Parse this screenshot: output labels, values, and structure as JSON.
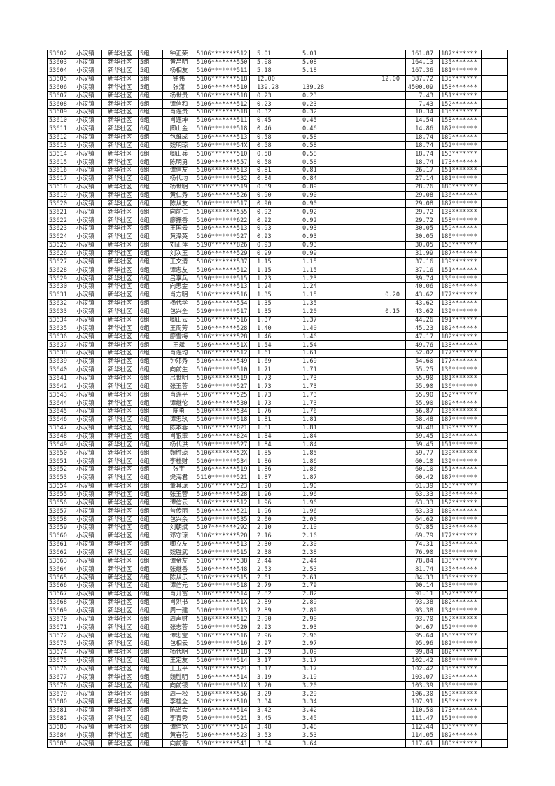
{
  "rows": [
    [
      "53602",
      "小汉镇",
      "新华社区",
      "5组",
      "钟正荣",
      "5106*******512",
      "5.01",
      "5.01",
      "",
      "",
      "161.87",
      "187*******",
      ""
    ],
    [
      "53603",
      "小汉镇",
      "新华社区",
      "5组",
      "黄昌明",
      "5106*******550",
      "5.08",
      "5.08",
      "",
      "",
      "164.13",
      "135*******",
      ""
    ],
    [
      "53604",
      "小汉镇",
      "新华社区",
      "5组",
      "杨相友",
      "5106*******511",
      "5.18",
      "5.18",
      "",
      "",
      "167.36",
      "181*******",
      ""
    ],
    [
      "53605",
      "小汉镇",
      "新华社区",
      "5组",
      "钟伟",
      "5106*******518",
      "12.00",
      "",
      "",
      "12.00",
      "387.72",
      "135*******",
      ""
    ],
    [
      "53606",
      "小汉镇",
      "新华社区",
      "5组",
      "张潇",
      "5106*******510",
      "139.28",
      "139.28",
      "",
      "",
      "4500.09",
      "158*******",
      ""
    ],
    [
      "53607",
      "小汉镇",
      "新华社区",
      "6组",
      "杨世贵",
      "5106*******518",
      "0.23",
      "0.23",
      "",
      "",
      "7.43",
      "151*******",
      ""
    ],
    [
      "53608",
      "小汉镇",
      "新华社区",
      "6组",
      "谭信和",
      "5106*******512",
      "0.23",
      "0.23",
      "",
      "",
      "7.43",
      "152*******",
      ""
    ],
    [
      "53609",
      "小汉镇",
      "新华社区",
      "6组",
      "肖连贵",
      "5106*******518",
      "0.32",
      "0.32",
      "",
      "",
      "10.34",
      "135*******",
      ""
    ],
    [
      "53610",
      "小汉镇",
      "新华社区",
      "6组",
      "肖连坤",
      "5106*******511",
      "0.45",
      "0.45",
      "",
      "",
      "14.54",
      "158*******",
      ""
    ],
    [
      "53611",
      "小汉镇",
      "新华社区",
      "6组",
      "卿山金",
      "5106*******518",
      "0.46",
      "0.46",
      "",
      "",
      "14.86",
      "187*******",
      ""
    ],
    [
      "53612",
      "小汉镇",
      "新华社区",
      "6组",
      "包维成",
      "5106*******513",
      "0.58",
      "0.58",
      "",
      "",
      "18.74",
      "189*******",
      ""
    ],
    [
      "53613",
      "小汉镇",
      "新华社区",
      "6组",
      "魏明琼",
      "5106*******54X",
      "0.58",
      "0.58",
      "",
      "",
      "18.74",
      "152*******",
      ""
    ],
    [
      "53614",
      "小汉镇",
      "新华社区",
      "6组",
      "卿山兵",
      "5106*******510",
      "0.58",
      "0.58",
      "",
      "",
      "18.74",
      "153*******",
      ""
    ],
    [
      "53615",
      "小汉镇",
      "新华社区",
      "6组",
      "陈明勇",
      "5190*******557",
      "0.58",
      "0.58",
      "",
      "",
      "18.74",
      "173*******",
      ""
    ],
    [
      "53616",
      "小汉镇",
      "新华社区",
      "6组",
      "谭信友",
      "5106*******513",
      "0.81",
      "0.81",
      "",
      "",
      "26.17",
      "151*******",
      ""
    ],
    [
      "53617",
      "小汉镇",
      "新华社区",
      "6组",
      "杨代均",
      "5106*******532",
      "0.84",
      "0.84",
      "",
      "",
      "27.14",
      "181*******",
      ""
    ],
    [
      "53618",
      "小汉镇",
      "新华社区",
      "6组",
      "杨世明",
      "5106*******519",
      "0.89",
      "0.89",
      "",
      "",
      "28.76",
      "180*******",
      ""
    ],
    [
      "53619",
      "小汉镇",
      "新华社区",
      "6组",
      "黄仁秀",
      "5106*******526",
      "0.90",
      "0.90",
      "",
      "",
      "29.08",
      "136*******",
      ""
    ],
    [
      "53620",
      "小汉镇",
      "新华社区",
      "6组",
      "陈从友",
      "5106*******517",
      "0.90",
      "0.90",
      "",
      "",
      "29.08",
      "187*******",
      ""
    ],
    [
      "53621",
      "小汉镇",
      "新华社区",
      "6组",
      "向前仁",
      "5106*******555",
      "0.92",
      "0.92",
      "",
      "",
      "29.72",
      "138*******",
      ""
    ],
    [
      "53622",
      "小汉镇",
      "新华社区",
      "6组",
      "廖振香",
      "5106*******622",
      "0.92",
      "0.92",
      "",
      "",
      "29.72",
      "158*******",
      ""
    ],
    [
      "53623",
      "小汉镇",
      "新华社区",
      "6组",
      "王国云",
      "5106*******513",
      "0.93",
      "0.93",
      "",
      "",
      "30.05",
      "159*******",
      ""
    ],
    [
      "53624",
      "小汉镇",
      "新华社区",
      "6组",
      "黄泽英",
      "5106*******527",
      "0.93",
      "0.93",
      "",
      "",
      "30.05",
      "180*******",
      ""
    ],
    [
      "53625",
      "小汉镇",
      "新华社区",
      "6组",
      "刘正萍",
      "5190*******826",
      "0.93",
      "0.93",
      "",
      "",
      "30.05",
      "158*******",
      ""
    ],
    [
      "53626",
      "小汉镇",
      "新华社区",
      "6组",
      "刘次玉",
      "5106*******529",
      "0.99",
      "0.99",
      "",
      "",
      "31.99",
      "187*******",
      ""
    ],
    [
      "53627",
      "小汉镇",
      "新华社区",
      "6组",
      "王文清",
      "5106*******537",
      "1.15",
      "1.15",
      "",
      "",
      "37.16",
      "139*******",
      ""
    ],
    [
      "53628",
      "小汉镇",
      "新华社区",
      "6组",
      "谭忠友",
      "5106*******512",
      "1.15",
      "1.15",
      "",
      "",
      "37.16",
      "151*******",
      ""
    ],
    [
      "53629",
      "小汉镇",
      "新华社区",
      "6组",
      "吕享兵",
      "5190*******515",
      "1.23",
      "1.23",
      "",
      "",
      "39.74",
      "136*******",
      ""
    ],
    [
      "53630",
      "小汉镇",
      "新华社区",
      "6组",
      "向思金",
      "5106*******513",
      "1.24",
      "1.24",
      "",
      "",
      "40.06",
      "180*******",
      ""
    ],
    [
      "53631",
      "小汉镇",
      "新华社区",
      "6组",
      "肖方明",
      "5106*******516",
      "1.35",
      "1.15",
      "",
      "0.20",
      "43.62",
      "177*******",
      ""
    ],
    [
      "53632",
      "小汉镇",
      "新华社区",
      "6组",
      "杨代学",
      "5106*******554",
      "1.35",
      "1.35",
      "",
      "",
      "43.62",
      "133*******",
      ""
    ],
    [
      "53633",
      "小汉镇",
      "新华社区",
      "6组",
      "包兴全",
      "5190*******517",
      "1.35",
      "1.20",
      "",
      "0.15",
      "43.62",
      "139*******",
      ""
    ],
    [
      "53634",
      "小汉镇",
      "新华社区",
      "6组",
      "卿山云",
      "5106*******516",
      "1.37",
      "1.37",
      "",
      "",
      "44.26",
      "191*******",
      ""
    ],
    [
      "53635",
      "小汉镇",
      "新华社区",
      "6组",
      "王周芳",
      "5106*******528",
      "1.40",
      "1.40",
      "",
      "",
      "45.23",
      "182*******",
      ""
    ],
    [
      "53636",
      "小汉镇",
      "新华社区",
      "6组",
      "廖雪梅",
      "5106*******528",
      "1.46",
      "1.46",
      "",
      "",
      "47.17",
      "182*******",
      ""
    ],
    [
      "53637",
      "小汉镇",
      "新华社区",
      "6组",
      "王斌",
      "5106*******51X",
      "1.54",
      "1.54",
      "",
      "",
      "49.76",
      "138*******",
      ""
    ],
    [
      "53638",
      "小汉镇",
      "新华社区",
      "6组",
      "肖连均",
      "5106*******512",
      "1.61",
      "1.61",
      "",
      "",
      "52.02",
      "177*******",
      ""
    ],
    [
      "53639",
      "小汉镇",
      "新华社区",
      "6组",
      "钟邓秀",
      "5106*******549",
      "1.69",
      "1.69",
      "",
      "",
      "54.60",
      "177*******",
      ""
    ],
    [
      "53640",
      "小汉镇",
      "新华社区",
      "6组",
      "向前生",
      "5106*******510",
      "1.71",
      "1.71",
      "",
      "",
      "55.25",
      "130*******",
      ""
    ],
    [
      "53641",
      "小汉镇",
      "新华社区",
      "6组",
      "吕世明",
      "5106*******519",
      "1.73",
      "1.73",
      "",
      "",
      "55.90",
      "181*******",
      ""
    ],
    [
      "53642",
      "小汉镇",
      "新华社区",
      "6组",
      "张玉蓉",
      "5106*******527",
      "1.73",
      "1.73",
      "",
      "",
      "55.90",
      "136*******",
      ""
    ],
    [
      "53643",
      "小汉镇",
      "新华社区",
      "6组",
      "肖连平",
      "5106*******525",
      "1.73",
      "1.73",
      "",
      "",
      "55.90",
      "152*******",
      ""
    ],
    [
      "53644",
      "小汉镇",
      "新华社区",
      "6组",
      "谭继伦",
      "5106*******530",
      "1.73",
      "1.73",
      "",
      "",
      "55.90",
      "189*******",
      ""
    ],
    [
      "53645",
      "小汉镇",
      "新华社区",
      "6组",
      "陈勇",
      "5106*******534",
      "1.76",
      "1.76",
      "",
      "",
      "56.87",
      "136*******",
      ""
    ],
    [
      "53646",
      "小汉镇",
      "新华社区",
      "6组",
      "谭忠玖",
      "5106*******518",
      "1.81",
      "1.81",
      "",
      "",
      "58.48",
      "187*******",
      ""
    ],
    [
      "53647",
      "小汉镇",
      "新华社区",
      "6组",
      "陈本蓉",
      "5106*******021",
      "1.81",
      "1.81",
      "",
      "",
      "58.48",
      "139*******",
      ""
    ],
    [
      "53648",
      "小汉镇",
      "新华社区",
      "6组",
      "肖银翠",
      "5106*******824",
      "1.84",
      "1.84",
      "",
      "",
      "59.45",
      "136*******",
      ""
    ],
    [
      "53649",
      "小汉镇",
      "新华社区",
      "6组",
      "杨代洪",
      "5190*******527",
      "1.84",
      "1.84",
      "",
      "",
      "59.45",
      "151*******",
      ""
    ],
    [
      "53650",
      "小汉镇",
      "新华社区",
      "6组",
      "魏胜琼",
      "5106*******52X",
      "1.85",
      "1.85",
      "",
      "",
      "59.77",
      "130*******",
      ""
    ],
    [
      "53651",
      "小汉镇",
      "新华社区",
      "6组",
      "李桂财",
      "5106*******534",
      "1.86",
      "1.86",
      "",
      "",
      "60.10",
      "139*******",
      ""
    ],
    [
      "53652",
      "小汉镇",
      "新华社区",
      "6组",
      "张宇",
      "5106*******519",
      "1.86",
      "1.86",
      "",
      "",
      "60.10",
      "151*******",
      ""
    ],
    [
      "53653",
      "小汉镇",
      "新华社区",
      "6组",
      "樊海君",
      "5110*******521",
      "1.87",
      "1.87",
      "",
      "",
      "60.42",
      "187*******",
      ""
    ],
    [
      "53654",
      "小汉镇",
      "新华社区",
      "6组",
      "董其琼",
      "5106*******523",
      "1.90",
      "1.90",
      "",
      "",
      "61.39",
      "158*******",
      ""
    ],
    [
      "53655",
      "小汉镇",
      "新华社区",
      "6组",
      "张玉蓉",
      "5106*******528",
      "1.96",
      "1.96",
      "",
      "",
      "63.33",
      "136*******",
      ""
    ],
    [
      "53656",
      "小汉镇",
      "新华社区",
      "6组",
      "谭信云",
      "5106*******512",
      "1.96",
      "1.96",
      "",
      "",
      "63.33",
      "152*******",
      ""
    ],
    [
      "53657",
      "小汉镇",
      "新华社区",
      "6组",
      "曾传丽",
      "5106*******521",
      "1.96",
      "1.96",
      "",
      "",
      "63.33",
      "180*******",
      ""
    ],
    [
      "53658",
      "小汉镇",
      "新华社区",
      "6组",
      "包兴余",
      "5106*******535",
      "2.00",
      "2.00",
      "",
      "",
      "64.62",
      "182*******",
      ""
    ],
    [
      "53659",
      "小汉镇",
      "新华社区",
      "6组",
      "刘朝斌",
      "5107*******292",
      "2.10",
      "2.10",
      "",
      "",
      "67.85",
      "133*******",
      ""
    ],
    [
      "53660",
      "小汉镇",
      "新华社区",
      "6组",
      "邓守琼",
      "5106*******520",
      "2.16",
      "2.16",
      "",
      "",
      "69.79",
      "177*******",
      ""
    ],
    [
      "53661",
      "小汉镇",
      "新华社区",
      "6组",
      "卿立友",
      "5106*******513",
      "2.30",
      "2.30",
      "",
      "",
      "74.31",
      "135*******",
      ""
    ],
    [
      "53662",
      "小汉镇",
      "新华社区",
      "6组",
      "魏胜武",
      "5106*******515",
      "2.38",
      "2.38",
      "",
      "",
      "76.90",
      "130*******",
      ""
    ],
    [
      "53663",
      "小汉镇",
      "新华社区",
      "6组",
      "谭金友",
      "5106*******538",
      "2.44",
      "2.44",
      "",
      "",
      "78.84",
      "138*******",
      ""
    ],
    [
      "53664",
      "小汉镇",
      "新华社区",
      "6组",
      "张继香",
      "5106*******548",
      "2.53",
      "2.53",
      "",
      "",
      "81.74",
      "135*******",
      ""
    ],
    [
      "53665",
      "小汉镇",
      "新华社区",
      "6组",
      "陈从乐",
      "5106*******515",
      "2.61",
      "2.61",
      "",
      "",
      "84.33",
      "136*******",
      ""
    ],
    [
      "53666",
      "小汉镇",
      "新华社区",
      "6组",
      "谭信元",
      "5106*******518",
      "2.79",
      "2.79",
      "",
      "",
      "90.14",
      "138*******",
      ""
    ],
    [
      "53667",
      "小汉镇",
      "新华社区",
      "6组",
      "肖开富",
      "5106*******514",
      "2.82",
      "2.82",
      "",
      "",
      "91.11",
      "157*******",
      ""
    ],
    [
      "53668",
      "小汉镇",
      "新华社区",
      "6组",
      "肖洪书",
      "5106*******51X",
      "2.89",
      "2.89",
      "",
      "",
      "93.38",
      "182*******",
      ""
    ],
    [
      "53669",
      "小汉镇",
      "新华社区",
      "6组",
      "周一建",
      "5106*******513",
      "2.89",
      "2.89",
      "",
      "",
      "93.38",
      "134*******",
      ""
    ],
    [
      "53670",
      "小汉镇",
      "新华社区",
      "6组",
      "周声财",
      "5106*******512",
      "2.90",
      "2.90",
      "",
      "",
      "93.70",
      "152*******",
      ""
    ],
    [
      "53671",
      "小汉镇",
      "新华社区",
      "6组",
      "张志蓉",
      "5106*******520",
      "2.93",
      "2.93",
      "",
      "",
      "94.67",
      "152*******",
      ""
    ],
    [
      "53672",
      "小汉镇",
      "新华社区",
      "6组",
      "谭忠宝",
      "5106*******516",
      "2.96",
      "2.96",
      "",
      "",
      "95.64",
      "158*******",
      ""
    ],
    [
      "53673",
      "小汉镇",
      "新华社区",
      "6组",
      "包相云",
      "5190*******516",
      "2.97",
      "2.97",
      "",
      "",
      "95.96",
      "182*******",
      ""
    ],
    [
      "53674",
      "小汉镇",
      "新华社区",
      "6组",
      "杨代明",
      "5106*******518",
      "3.09",
      "3.09",
      "",
      "",
      "99.84",
      "182*******",
      ""
    ],
    [
      "53675",
      "小汉镇",
      "新华社区",
      "6组",
      "王定友",
      "5106*******514",
      "3.17",
      "3.17",
      "",
      "",
      "102.42",
      "180*******",
      ""
    ],
    [
      "53676",
      "小汉镇",
      "新华社区",
      "6组",
      "王玉平",
      "5190*******521",
      "3.17",
      "3.17",
      "",
      "",
      "102.42",
      "135*******",
      ""
    ],
    [
      "53677",
      "小汉镇",
      "新华社区",
      "6组",
      "魏胜明",
      "5106*******514",
      "3.19",
      "3.19",
      "",
      "",
      "103.07",
      "130*******",
      ""
    ],
    [
      "53678",
      "小汉镇",
      "新华社区",
      "6组",
      "向前银",
      "5106*******51X",
      "3.20",
      "3.20",
      "",
      "",
      "103.39",
      "136*******",
      ""
    ],
    [
      "53679",
      "小汉镇",
      "新华社区",
      "6组",
      "周一松",
      "5106*******556",
      "3.29",
      "3.29",
      "",
      "",
      "106.30",
      "159*******",
      ""
    ],
    [
      "53680",
      "小汉镇",
      "新华社区",
      "6组",
      "李桂全",
      "5106*******510",
      "3.34",
      "3.34",
      "",
      "",
      "107.91",
      "158*******",
      ""
    ],
    [
      "53681",
      "小汉镇",
      "新华社区",
      "6组",
      "陈道会",
      "5106*******514",
      "3.42",
      "3.42",
      "",
      "",
      "110.50",
      "173*******",
      ""
    ],
    [
      "53682",
      "小汉镇",
      "新华社区",
      "6组",
      "李青秀",
      "5106*******521",
      "3.45",
      "3.45",
      "",
      "",
      "111.47",
      "151*******",
      ""
    ],
    [
      "53683",
      "小汉镇",
      "新华社区",
      "6组",
      "谭信宽",
      "5106*******514",
      "3.48",
      "3.48",
      "",
      "",
      "112.44",
      "136*******",
      ""
    ],
    [
      "53684",
      "小汉镇",
      "新华社区",
      "6组",
      "黄春花",
      "5106*******523",
      "3.53",
      "3.53",
      "",
      "",
      "114.05",
      "182*******",
      ""
    ],
    [
      "53685",
      "小汉镇",
      "新华社区",
      "6组",
      "向前香",
      "5190*******541",
      "3.64",
      "3.64",
      "",
      "",
      "117.61",
      "180*******",
      ""
    ]
  ]
}
